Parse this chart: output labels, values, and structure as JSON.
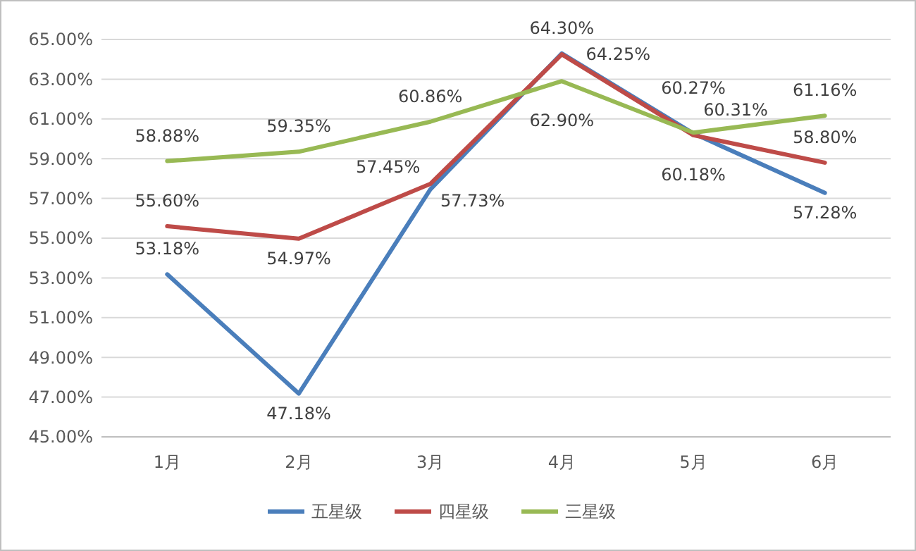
{
  "chart_data": {
    "type": "line",
    "categories": [
      "1月",
      "2月",
      "3月",
      "4月",
      "5月",
      "6月"
    ],
    "series": [
      {
        "name": "五星级",
        "color": "#4a7ebb",
        "values": [
          53.18,
          47.18,
          57.45,
          64.3,
          60.27,
          57.28
        ],
        "value_labels": [
          "53.18%",
          "47.18%",
          "57.45%",
          "64.30%",
          "60.27%",
          "57.28%"
        ]
      },
      {
        "name": "四星级",
        "color": "#be4b48",
        "values": [
          55.6,
          54.97,
          57.73,
          64.25,
          60.18,
          58.8
        ],
        "value_labels": [
          "55.60%",
          "54.97%",
          "57.73%",
          "64.25%",
          "60.18%",
          "58.80%"
        ]
      },
      {
        "name": "三星级",
        "color": "#98b954",
        "values": [
          58.88,
          59.35,
          60.86,
          62.9,
          60.31,
          61.16
        ],
        "value_labels": [
          "58.88%",
          "59.35%",
          "60.86%",
          "62.90%",
          "60.31%",
          "61.16%"
        ]
      }
    ],
    "ylim": [
      45,
      65
    ],
    "yticks": [
      {
        "value": 45,
        "label": "45.00%"
      },
      {
        "value": 47,
        "label": "47.00%"
      },
      {
        "value": 49,
        "label": "49.00%"
      },
      {
        "value": 51,
        "label": "51.00%"
      },
      {
        "value": 53,
        "label": "53.00%"
      },
      {
        "value": 55,
        "label": "55.00%"
      },
      {
        "value": 57,
        "label": "57.00%"
      },
      {
        "value": 59,
        "label": "59.00%"
      },
      {
        "value": 61,
        "label": "61.00%"
      },
      {
        "value": 63,
        "label": "63.00%"
      },
      {
        "value": 65,
        "label": "65.00%"
      }
    ],
    "grid": "y",
    "legend": "bottom",
    "marker": "none",
    "line_style": "solid"
  }
}
